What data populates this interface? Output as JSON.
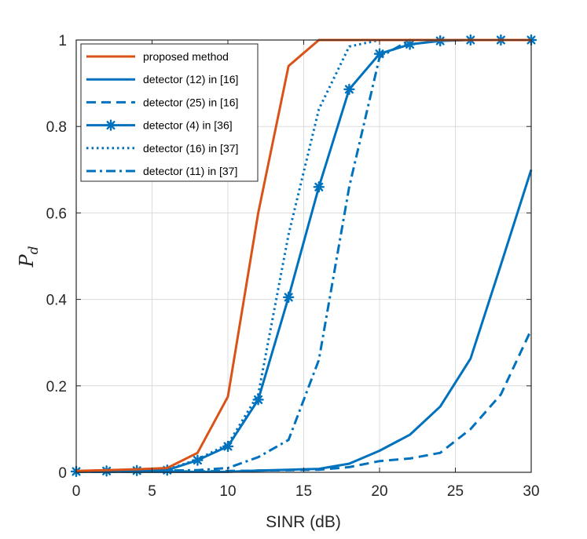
{
  "chart_data": {
    "type": "line",
    "title": "",
    "xlabel": "SINR (dB)",
    "ylabel_main": "P",
    "ylabel_sub": "d",
    "xlim": [
      0,
      30
    ],
    "ylim": [
      0,
      1
    ],
    "xticks": [
      0,
      5,
      10,
      15,
      20,
      25,
      30
    ],
    "yticks": [
      0,
      0.2,
      0.4,
      0.6,
      0.8,
      1
    ],
    "ytick_labels": [
      "0",
      "0.2",
      "0.4",
      "0.6",
      "0.8",
      "1"
    ],
    "grid": true,
    "legend_position": "top-left",
    "series": [
      {
        "name": "proposed method",
        "color": "#D95319",
        "style": "solid",
        "marker": "none",
        "x": [
          0,
          2,
          4,
          6,
          8,
          10,
          12,
          14,
          16,
          18,
          20,
          22,
          24,
          26,
          28,
          30
        ],
        "y": [
          0.003,
          0.005,
          0.007,
          0.01,
          0.045,
          0.175,
          0.6,
          0.94,
          1.0,
          1.0,
          1.0,
          1.0,
          1.0,
          1.0,
          1.0,
          1.0
        ]
      },
      {
        "name": "detector (12) in [16]",
        "color": "#0072BD",
        "style": "solid",
        "marker": "none",
        "x": [
          0,
          2,
          4,
          6,
          8,
          10,
          12,
          14,
          16,
          18,
          20,
          22,
          24,
          26,
          28,
          30
        ],
        "y": [
          0.001,
          0.001,
          0.001,
          0.001,
          0.001,
          0.001,
          0.004,
          0.006,
          0.008,
          0.02,
          0.05,
          0.087,
          0.152,
          0.263,
          0.48,
          0.7
        ]
      },
      {
        "name": "detector (25) in [16]",
        "color": "#0072BD",
        "style": "dashed",
        "marker": "none",
        "x": [
          0,
          2,
          4,
          6,
          8,
          10,
          12,
          14,
          16,
          18,
          20,
          22,
          24,
          26,
          28,
          30
        ],
        "y": [
          0.001,
          0.001,
          0.001,
          0.002,
          0.002,
          0.003,
          0.004,
          0.005,
          0.006,
          0.012,
          0.026,
          0.032,
          0.045,
          0.1,
          0.18,
          0.33
        ]
      },
      {
        "name": "detector (4) in [36]",
        "color": "#0072BD",
        "style": "solid",
        "marker": "asterisk",
        "x": [
          0,
          2,
          4,
          6,
          8,
          10,
          12,
          14,
          16,
          18,
          20,
          22,
          24,
          26,
          28,
          30
        ],
        "y": [
          0.002,
          0.003,
          0.004,
          0.005,
          0.028,
          0.06,
          0.168,
          0.405,
          0.66,
          0.886,
          0.968,
          0.99,
          0.998,
          1.0,
          1.0,
          1.0
        ]
      },
      {
        "name": "detector (16) in [37]",
        "color": "#0072BD",
        "style": "dotted",
        "marker": "none",
        "x": [
          0,
          2,
          4,
          6,
          8,
          10,
          12,
          14,
          16,
          18,
          20,
          22,
          24,
          26,
          28,
          30
        ],
        "y": [
          0.002,
          0.003,
          0.004,
          0.006,
          0.03,
          0.065,
          0.18,
          0.55,
          0.84,
          0.985,
          1.0,
          1.0,
          1.0,
          1.0,
          1.0,
          1.0
        ]
      },
      {
        "name": "detector (11) in [37]",
        "color": "#0072BD",
        "style": "dashdot",
        "marker": "none",
        "x": [
          0,
          2,
          4,
          6,
          8,
          10,
          12,
          14,
          16,
          18,
          20,
          22,
          24,
          26,
          28,
          30
        ],
        "y": [
          0.001,
          0.002,
          0.003,
          0.004,
          0.005,
          0.01,
          0.035,
          0.075,
          0.26,
          0.66,
          0.96,
          1.0,
          1.0,
          1.0,
          1.0,
          1.0
        ]
      }
    ]
  }
}
